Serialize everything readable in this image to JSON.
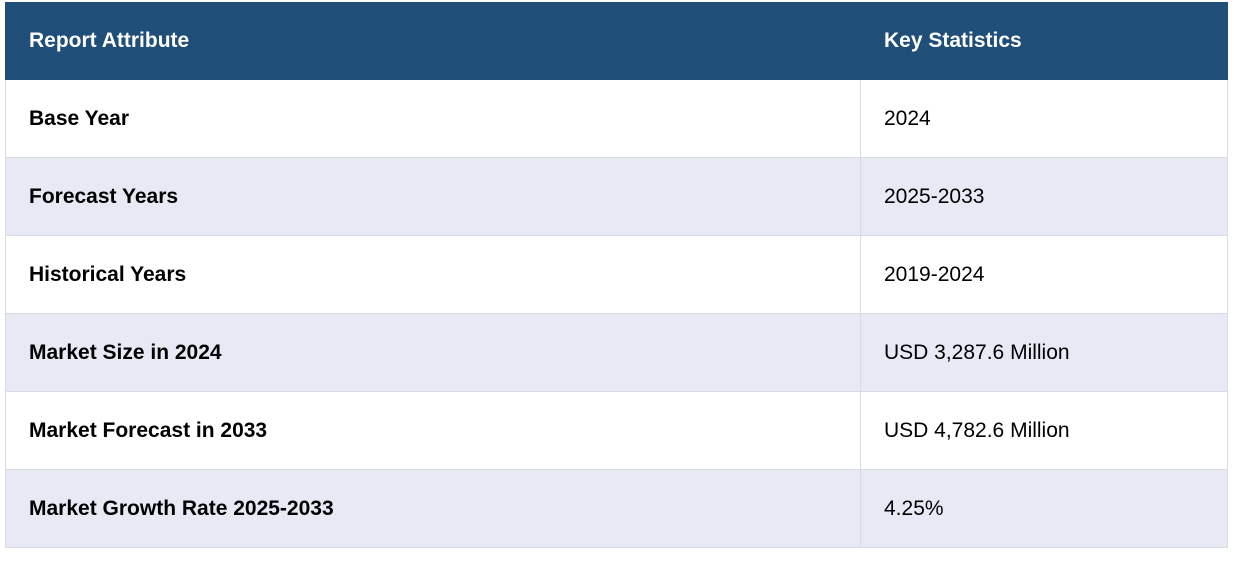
{
  "table": {
    "headers": [
      "Report Attribute",
      "Key Statistics"
    ],
    "rows": [
      {
        "attribute": "Base Year",
        "value": "2024"
      },
      {
        "attribute": "Forecast Years",
        "value": "2025-2033"
      },
      {
        "attribute": "Historical Years",
        "value": "2019-2024"
      },
      {
        "attribute": "Market Size in 2024",
        "value": "USD 3,287.6 Million"
      },
      {
        "attribute": "Market Forecast in 2033",
        "value": "USD 4,782.6 Million"
      },
      {
        "attribute": "Market Growth Rate 2025-2033",
        "value": "4.25%"
      }
    ]
  },
  "colors": {
    "header_bg": "#1f4e79",
    "header_text": "#ffffff",
    "row_alt_bg": "#e7e9f5",
    "row_bg": "#ffffff",
    "border": "#d8dbe3"
  }
}
